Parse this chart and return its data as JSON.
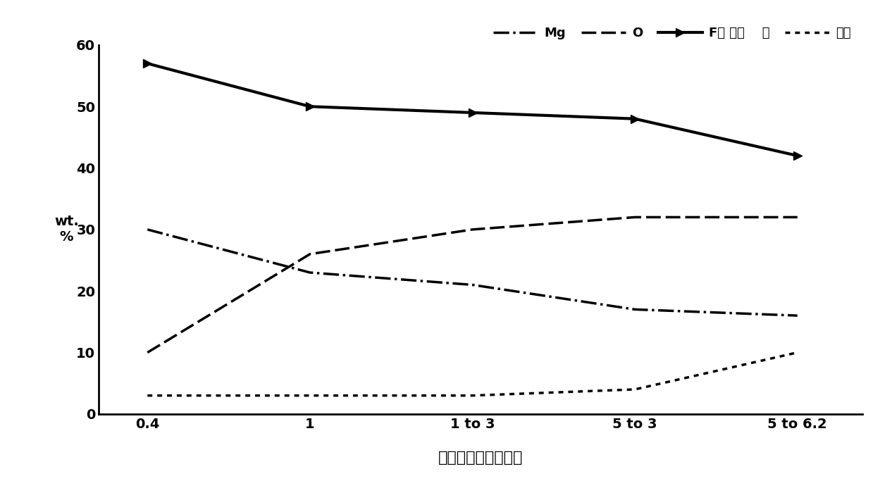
{
  "x_labels": [
    "0.4",
    "1",
    "1 to 3",
    "5 to 3",
    "5 to 6.2"
  ],
  "x_positions": [
    0,
    1,
    2,
    3,
    4
  ],
  "series": {
    "Mg": {
      "values": [
        30,
        23,
        21,
        17,
        16
      ]
    },
    "O": {
      "values": [
        10,
        26,
        30,
        32,
        32
      ]
    },
    "F_calc": {
      "values": [
        57,
        50,
        49,
        48,
        42
      ]
    },
    "other": {
      "values": [
        3,
        3,
        3,
        4,
        10
      ]
    }
  },
  "ylim": [
    0,
    60
  ],
  "yticks": [
    0,
    10,
    20,
    30,
    40,
    50,
    60
  ],
  "ylabel": "wt.\n%",
  "xlabel": "与金属表面的微米数",
  "legend_labels": [
    "Mg",
    "O",
    "F（ 计算    ）",
    "其它"
  ],
  "background_color": "#ffffff"
}
